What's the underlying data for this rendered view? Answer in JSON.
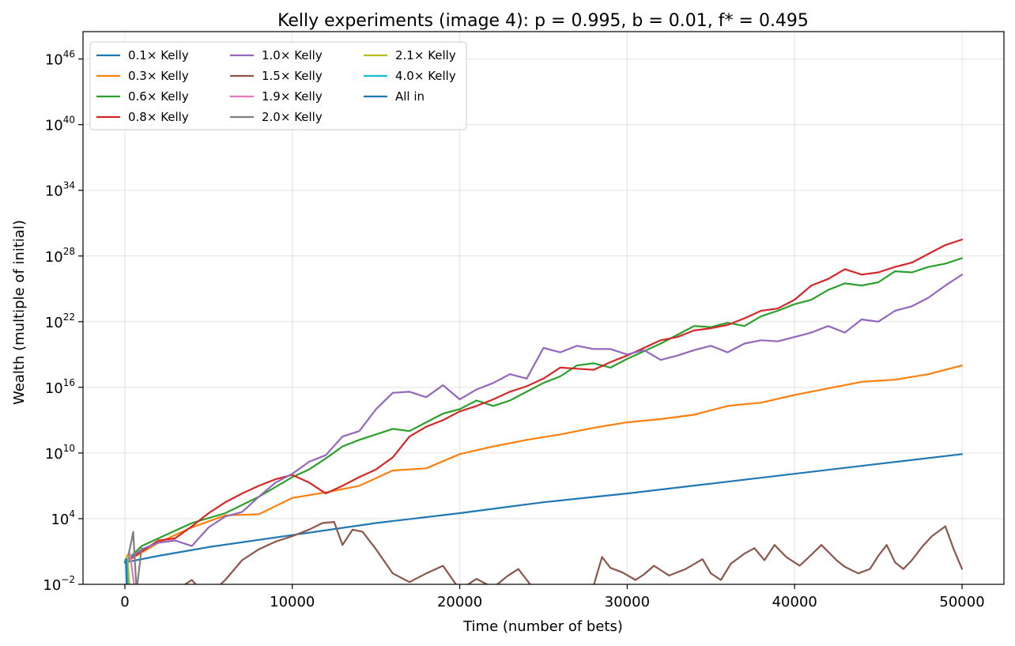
{
  "chart_data": {
    "type": "line",
    "title": "Kelly experiments (image 4): p = 0.995, b = 0.01, f* = 0.495",
    "xlabel": "Time (number of bets)",
    "ylabel": "Wealth (multiple of initial)",
    "xlim": [
      -2500,
      52500
    ],
    "ylim_log10": [
      -2,
      48.5
    ],
    "yscale": "log",
    "grid": true,
    "legend_placement": "top-left",
    "legend_columns": 3,
    "x_ticks": [
      0,
      10000,
      20000,
      30000,
      40000,
      50000
    ],
    "x_tick_labels": [
      "0",
      "10000",
      "20000",
      "30000",
      "40000",
      "50000"
    ],
    "y_ticks_log10": [
      -2,
      4,
      10,
      16,
      22,
      28,
      34,
      40,
      46
    ],
    "y_tick_base": "10",
    "y_tick_exponents": [
      "−2",
      "4",
      "10",
      "16",
      "22",
      "28",
      "34",
      "40",
      "46"
    ],
    "series": [
      {
        "name": "0.1× Kelly",
        "color": "#1f77b4",
        "x": [
          0,
          2000,
          5000,
          10000,
          15000,
          20000,
          25000,
          30000,
          35000,
          40000,
          45000,
          50000
        ],
        "log10_y": [
          0,
          0.6,
          1.4,
          2.5,
          3.6,
          4.5,
          5.5,
          6.3,
          7.2,
          8.1,
          9.0,
          9.9
        ]
      },
      {
        "name": "0.3× Kelly",
        "color": "#ff7f0e",
        "x": [
          0,
          2000,
          4000,
          6000,
          8000,
          10000,
          12000,
          14000,
          16000,
          18000,
          20000,
          22000,
          24000,
          26000,
          28000,
          30000,
          32000,
          34000,
          36000,
          38000,
          40000,
          42000,
          44000,
          46000,
          48000,
          50000
        ],
        "log10_y": [
          0,
          1.8,
          3.2,
          4.3,
          4.4,
          5.9,
          6.4,
          7.0,
          8.4,
          8.6,
          9.9,
          10.6,
          11.2,
          11.7,
          12.3,
          12.8,
          13.1,
          13.5,
          14.3,
          14.6,
          15.3,
          15.9,
          16.5,
          16.7,
          17.2,
          18.0
        ]
      },
      {
        "name": "0.6× Kelly",
        "color": "#2ca02c",
        "x": [
          0,
          1000,
          2000,
          4000,
          6000,
          8000,
          10000,
          11000,
          12000,
          13000,
          14000,
          16000,
          17000,
          18000,
          19000,
          20000,
          21000,
          22000,
          23000,
          24000,
          25000,
          26000,
          27000,
          28000,
          29000,
          30000,
          31000,
          32000,
          33000,
          34000,
          35000,
          36000,
          37000,
          38000,
          39000,
          40000,
          41000,
          42000,
          43000,
          44000,
          45000,
          46000,
          47000,
          48000,
          49000,
          50000
        ],
        "log10_y": [
          0,
          1.5,
          2.2,
          3.6,
          4.5,
          6.0,
          7.8,
          8.5,
          9.5,
          10.6,
          11.2,
          12.2,
          12.0,
          12.8,
          13.6,
          14.0,
          14.8,
          14.3,
          14.8,
          15.6,
          16.4,
          17.0,
          18.0,
          18.2,
          17.8,
          18.6,
          19.3,
          20.0,
          20.8,
          21.6,
          21.5,
          21.9,
          21.6,
          22.5,
          23.0,
          23.6,
          24.0,
          24.9,
          25.5,
          25.3,
          25.6,
          26.6,
          26.5,
          27.0,
          27.3,
          27.8
        ]
      },
      {
        "name": "0.8× Kelly",
        "color": "#d62728",
        "x": [
          0,
          1000,
          2000,
          3000,
          4000,
          5000,
          6000,
          7000,
          8000,
          9000,
          10000,
          11000,
          12000,
          13000,
          14000,
          15000,
          16000,
          17000,
          18000,
          19000,
          20000,
          21000,
          22000,
          23000,
          24000,
          25000,
          26000,
          27000,
          28000,
          29000,
          30000,
          31000,
          32000,
          33000,
          34000,
          35000,
          36000,
          37000,
          38000,
          39000,
          40000,
          41000,
          42000,
          43000,
          44000,
          45000,
          46000,
          47000,
          48000,
          49000,
          50000
        ],
        "log10_y": [
          0,
          1.0,
          2.0,
          2.2,
          3.3,
          4.5,
          5.5,
          6.3,
          7.0,
          7.6,
          8.0,
          7.3,
          6.3,
          7.0,
          7.8,
          8.5,
          9.6,
          11.5,
          12.4,
          13.0,
          13.8,
          14.3,
          14.9,
          15.6,
          16.1,
          16.8,
          17.8,
          17.7,
          17.6,
          18.3,
          18.9,
          19.6,
          20.3,
          20.6,
          21.2,
          21.4,
          21.7,
          22.3,
          23.0,
          23.2,
          24.0,
          25.3,
          25.9,
          26.8,
          26.3,
          26.5,
          27.0,
          27.4,
          28.2,
          29.0,
          29.5
        ]
      },
      {
        "name": "1.0× Kelly",
        "color": "#9467bd",
        "x": [
          0,
          1000,
          2000,
          3000,
          4000,
          5000,
          6000,
          7000,
          8000,
          9000,
          10000,
          11000,
          12000,
          13000,
          14000,
          15000,
          16000,
          17000,
          18000,
          19000,
          20000,
          21000,
          22000,
          23000,
          24000,
          25000,
          26000,
          27000,
          28000,
          29000,
          30000,
          31000,
          32000,
          33000,
          34000,
          35000,
          36000,
          37000,
          38000,
          39000,
          40000,
          41000,
          42000,
          43000,
          44000,
          45000,
          46000,
          47000,
          48000,
          49000,
          50000
        ],
        "log10_y": [
          0,
          1.2,
          1.8,
          2.0,
          1.5,
          3.2,
          4.2,
          4.6,
          6.0,
          7.3,
          8.1,
          9.2,
          9.8,
          11.5,
          12.0,
          14.0,
          15.5,
          15.6,
          15.1,
          16.2,
          14.9,
          15.8,
          16.4,
          17.2,
          16.8,
          19.6,
          19.2,
          19.8,
          19.5,
          19.5,
          19.0,
          19.4,
          18.5,
          18.9,
          19.4,
          19.8,
          19.2,
          20.0,
          20.3,
          20.2,
          20.6,
          21.0,
          21.6,
          21.0,
          22.2,
          22.0,
          23.0,
          23.4,
          24.2,
          25.3,
          26.3
        ]
      },
      {
        "name": "1.5× Kelly",
        "color": "#8c564b",
        "x": [
          3000,
          4000,
          4800,
          5500,
          6000,
          7000,
          8000,
          9000,
          10000,
          11000,
          11800,
          12500,
          13000,
          13600,
          14200,
          15000,
          16000,
          17000,
          18000,
          19000,
          20000,
          21000,
          22000,
          22800,
          23500,
          24200,
          25000,
          26000,
          27000,
          28000,
          28500,
          29000,
          29700,
          30500,
          31000,
          31600,
          32500,
          33500,
          34500,
          35000,
          35600,
          36200,
          37000,
          37600,
          38200,
          38800,
          39500,
          40300,
          41000,
          41600,
          42500,
          43000,
          43800,
          44500,
          45000,
          45500,
          46000,
          46500,
          47000,
          47600,
          48200,
          49000,
          49500,
          50000
        ],
        "log10_y": [
          -2.6,
          -1.6,
          -3.0,
          -2.3,
          -1.6,
          0.2,
          1.2,
          1.9,
          2.4,
          3.0,
          3.6,
          3.7,
          1.6,
          3.0,
          2.8,
          1.2,
          -1.0,
          -1.8,
          -1.0,
          -0.3,
          -2.5,
          -1.5,
          -2.3,
          -1.3,
          -0.6,
          -2.0,
          -3.0,
          -2.4,
          -2.7,
          -2.1,
          0.5,
          -0.5,
          -0.9,
          -1.6,
          -1.1,
          -0.3,
          -1.2,
          -0.6,
          0.3,
          -1.0,
          -1.6,
          -0.1,
          0.8,
          1.3,
          0.2,
          1.6,
          0.5,
          -0.3,
          0.7,
          1.6,
          0.2,
          -0.4,
          -1.0,
          -0.6,
          0.6,
          1.6,
          0.0,
          -0.6,
          0.2,
          1.4,
          2.4,
          3.3,
          1.2,
          -0.6
        ]
      },
      {
        "name": "1.9× Kelly",
        "color": "#e377c2",
        "x": [
          0,
          300,
          600
        ],
        "log10_y": [
          0,
          0.8,
          -2.6
        ]
      },
      {
        "name": "2.0× Kelly",
        "color": "#7f7f7f",
        "x": [
          0,
          200,
          400,
          500,
          700,
          1000
        ],
        "log10_y": [
          0,
          0.6,
          2.0,
          2.8,
          -2.6,
          1.3
        ]
      },
      {
        "name": "2.1× Kelly",
        "color": "#bcbd22",
        "x": [
          0,
          150,
          300
        ],
        "log10_y": [
          0,
          0.7,
          -2.6
        ]
      },
      {
        "name": "4.0× Kelly",
        "color": "#17becf",
        "x": [
          0,
          100,
          200
        ],
        "log10_y": [
          0,
          0.3,
          -2.6
        ]
      },
      {
        "name": "All in",
        "color": "#1f77b4",
        "x": [
          0,
          60,
          120
        ],
        "log10_y": [
          0,
          0.3,
          -2.6
        ]
      }
    ]
  }
}
